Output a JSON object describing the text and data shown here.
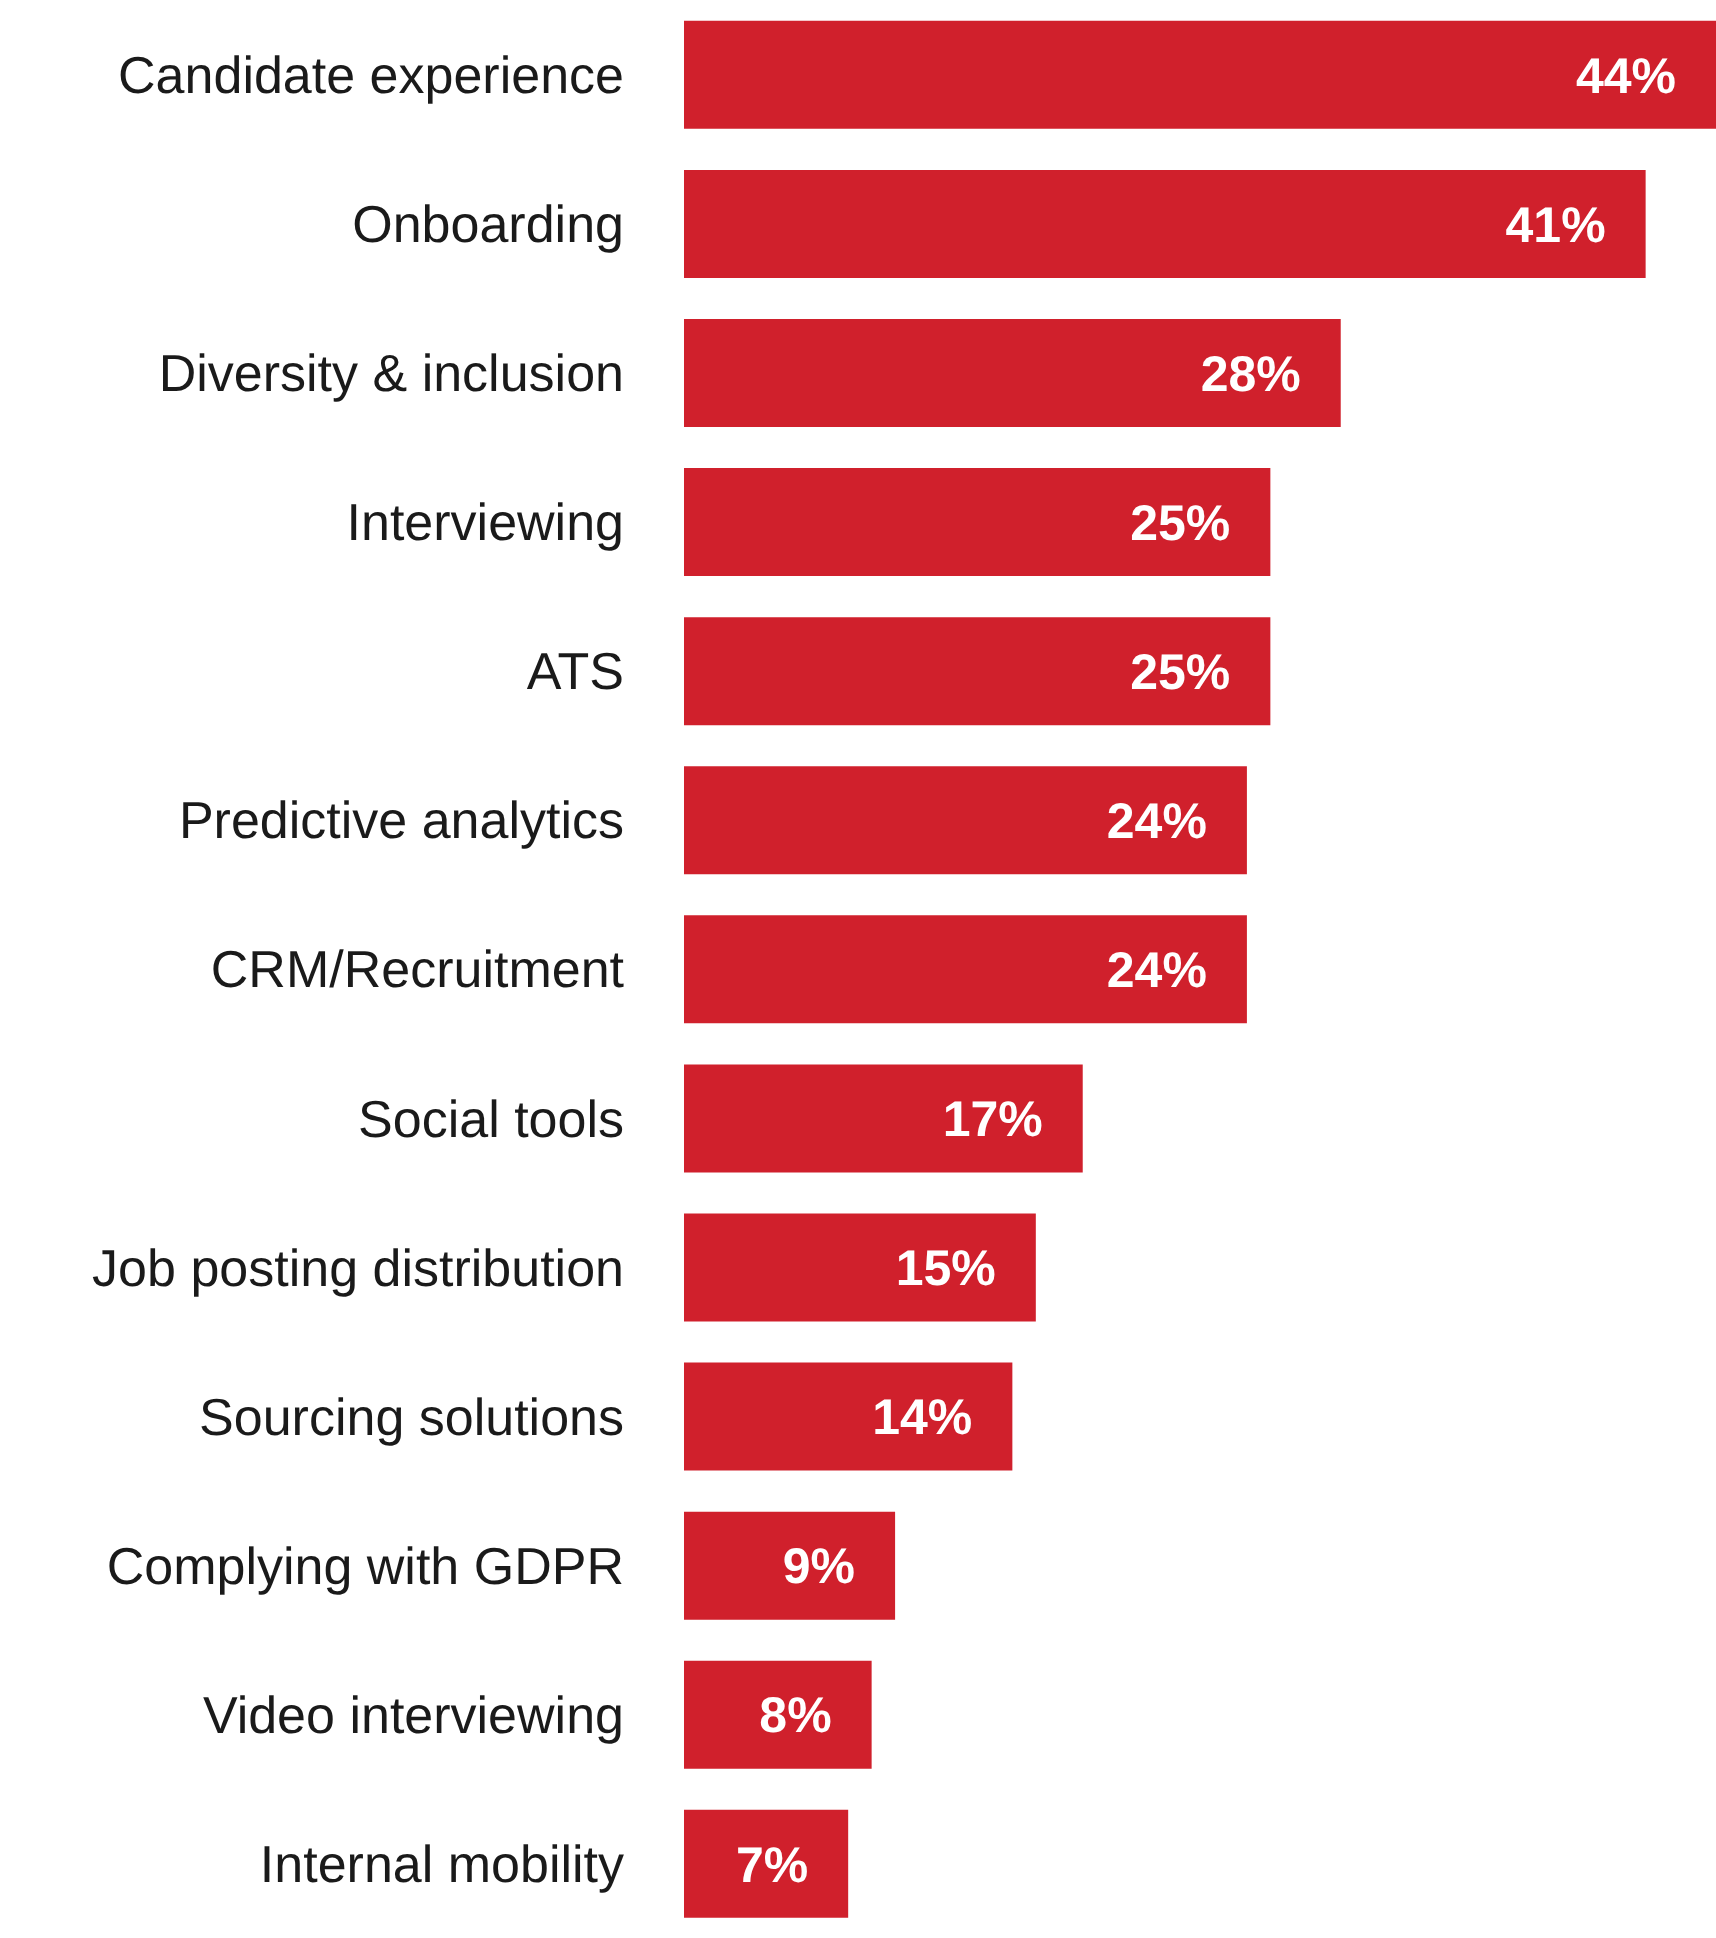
{
  "chart_data": {
    "type": "bar",
    "orientation": "horizontal",
    "categories": [
      "Candidate experience",
      "Onboarding",
      "Diversity & inclusion",
      "Interviewing",
      "ATS",
      "Predictive analytics",
      "CRM/Recruitment",
      "Social tools",
      "Job posting distribution",
      "Sourcing solutions",
      "Complying with GDPR",
      "Video interviewing",
      "Internal mobility"
    ],
    "values": [
      44,
      41,
      28,
      25,
      25,
      24,
      24,
      17,
      15,
      14,
      9,
      8,
      7
    ],
    "value_labels": [
      "44%",
      "41%",
      "28%",
      "25%",
      "25%",
      "24%",
      "24%",
      "17%",
      "15%",
      "14%",
      "9%",
      "8%",
      "7%"
    ],
    "color": "#d0202c",
    "grid": false,
    "legend": false
  }
}
